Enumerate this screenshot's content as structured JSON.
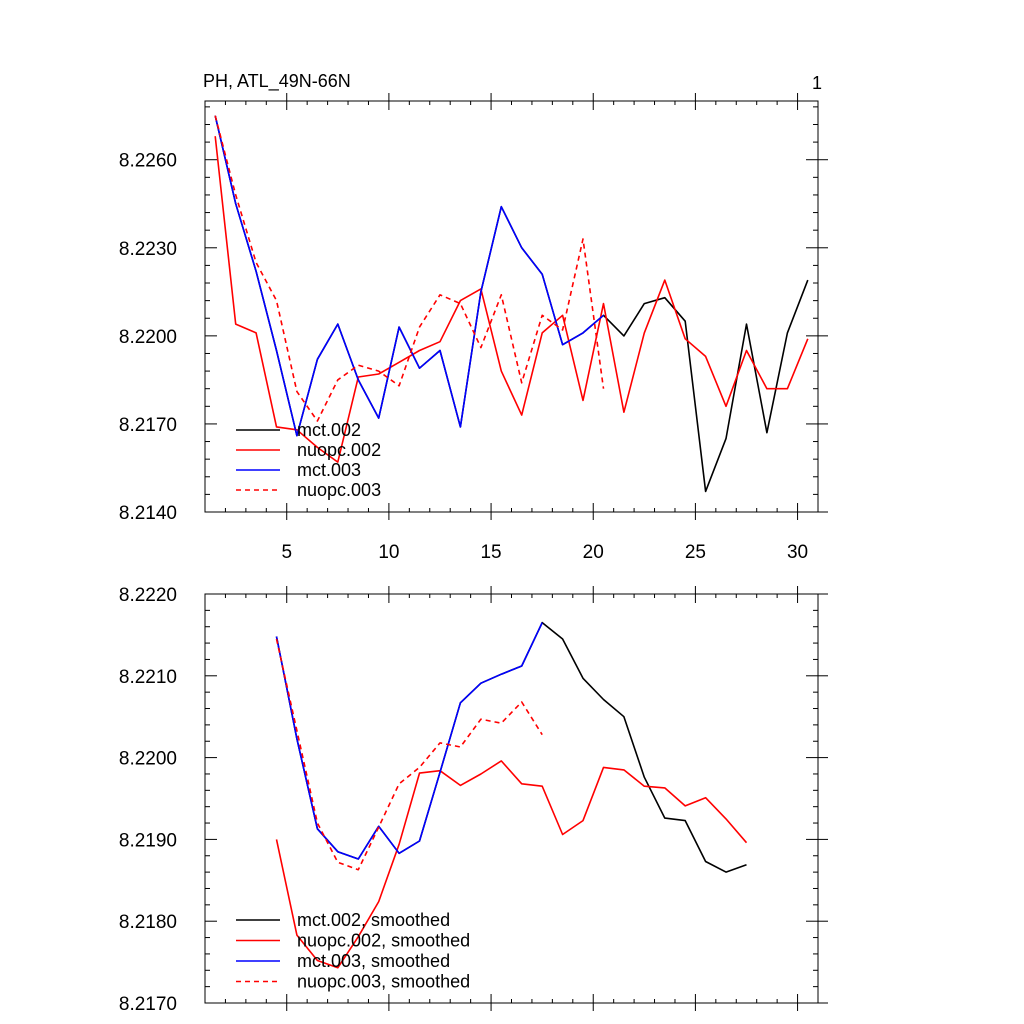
{
  "chart_data": [
    {
      "type": "line",
      "title": "PH, ATL_49N-66N",
      "panel_label": "1",
      "xlabel": "",
      "ylabel": "",
      "xlim": [
        1,
        31
      ],
      "ylim": [
        8.214,
        8.228
      ],
      "x_ticks": [
        5,
        10,
        15,
        20,
        25,
        30
      ],
      "x_tick_labels": [
        "5",
        "10",
        "15",
        "20",
        "25",
        "30"
      ],
      "y_ticks": [
        8.214,
        8.217,
        8.22,
        8.223,
        8.226
      ],
      "y_tick_labels": [
        "8.2140",
        "8.2170",
        "8.2200",
        "8.2230",
        "8.2260"
      ],
      "grid": false,
      "legend_position": "bottom-left",
      "series": [
        {
          "name": "mct.002",
          "color": "#000000",
          "dash": "solid",
          "x": [
            1.5,
            2.5,
            3.5,
            4.5,
            5.5,
            6.5,
            7.5,
            8.5,
            9.5,
            10.5,
            11.5,
            12.5,
            13.5,
            14.5,
            15.5,
            16.5,
            17.5,
            18.5,
            19.5,
            20.5,
            21.5,
            22.5,
            23.5,
            24.5,
            25.5,
            26.5,
            27.5,
            28.5,
            29.5,
            30.5
          ],
          "values": [
            8.2275,
            8.2245,
            8.2222,
            8.2195,
            8.2166,
            8.2192,
            8.2204,
            8.2185,
            8.2172,
            8.2203,
            8.2189,
            8.2195,
            8.2169,
            8.2215,
            8.2244,
            8.223,
            8.2221,
            8.2197,
            8.2201,
            8.2207,
            8.22,
            8.2211,
            8.2213,
            8.2205,
            8.2147,
            8.2165,
            8.2204,
            8.2167,
            8.2201,
            8.2219
          ]
        },
        {
          "name": "nuopc.002",
          "color": "#ff0000",
          "dash": "solid",
          "x": [
            1.5,
            2.5,
            3.5,
            4.5,
            5.5,
            6.5,
            7.5,
            8.5,
            9.5,
            10.5,
            11.5,
            12.5,
            13.5,
            14.5,
            15.5,
            16.5,
            17.5,
            18.5,
            19.5,
            20.5,
            21.5,
            22.5,
            23.5,
            24.5,
            25.5,
            26.5,
            27.5,
            28.5,
            29.5,
            30.5
          ],
          "values": [
            8.2268,
            8.2204,
            8.2201,
            8.2169,
            8.2168,
            8.2162,
            8.2157,
            8.2186,
            8.2187,
            8.2191,
            8.2195,
            8.2198,
            8.2212,
            8.2216,
            8.2188,
            8.2173,
            8.2201,
            8.2207,
            8.2178,
            8.2211,
            8.2174,
            8.2201,
            8.2219,
            8.2199,
            8.2193,
            8.2176,
            8.2195,
            8.2182,
            8.2182,
            8.2199
          ]
        },
        {
          "name": "mct.003",
          "color": "#0000ff",
          "dash": "solid",
          "x": [
            1.5,
            2.5,
            3.5,
            4.5,
            5.5,
            6.5,
            7.5,
            8.5,
            9.5,
            10.5,
            11.5,
            12.5,
            13.5,
            14.5,
            15.5,
            16.5,
            17.5,
            18.5,
            19.5,
            20.5
          ],
          "values": [
            8.2275,
            8.2245,
            8.2222,
            8.2195,
            8.2166,
            8.2192,
            8.2204,
            8.2185,
            8.2172,
            8.2203,
            8.2189,
            8.2195,
            8.2169,
            8.2215,
            8.2244,
            8.223,
            8.2221,
            8.2197,
            8.2201,
            8.2207
          ]
        },
        {
          "name": "nuopc.003",
          "color": "#ff0000",
          "dash": "dashed",
          "x": [
            1.5,
            2.5,
            3.5,
            4.5,
            5.5,
            6.5,
            7.5,
            8.5,
            9.5,
            10.5,
            11.5,
            12.5,
            13.5,
            14.5,
            15.5,
            16.5,
            17.5,
            18.5,
            19.5,
            20.5
          ],
          "values": [
            8.2275,
            8.2248,
            8.2225,
            8.2212,
            8.2181,
            8.2171,
            8.2185,
            8.219,
            8.2188,
            8.2183,
            8.2203,
            8.2214,
            8.2211,
            8.2196,
            8.2214,
            8.2184,
            8.2207,
            8.2202,
            8.2233,
            8.2182
          ]
        }
      ]
    },
    {
      "type": "line",
      "title": "",
      "xlabel": "",
      "ylabel": "",
      "xlim": [
        1,
        31
      ],
      "ylim": [
        8.217,
        8.222
      ],
      "x_ticks": [
        5,
        10,
        15,
        20,
        25,
        30
      ],
      "x_tick_labels": [],
      "y_ticks": [
        8.217,
        8.218,
        8.219,
        8.22,
        8.221,
        8.222
      ],
      "y_tick_labels": [
        "8.2170",
        "8.2180",
        "8.2190",
        "8.2200",
        "8.2210",
        "8.2220"
      ],
      "grid": false,
      "legend_position": "bottom-left",
      "series": [
        {
          "name": "mct.002, smoothed",
          "color": "#000000",
          "dash": "solid",
          "x": [
            4.5,
            5.5,
            6.5,
            7.5,
            8.5,
            9.5,
            10.5,
            11.5,
            12.5,
            13.5,
            14.5,
            15.5,
            16.5,
            17.5,
            18.5,
            19.5,
            20.5,
            21.5,
            22.5,
            23.5,
            24.5,
            25.5,
            26.5,
            27.5
          ],
          "values": [
            8.22148,
            8.22023,
            8.21913,
            8.21885,
            8.21876,
            8.21916,
            8.21883,
            8.21898,
            8.21982,
            8.22067,
            8.22091,
            8.22102,
            8.22112,
            8.22165,
            8.22145,
            8.22097,
            8.22071,
            8.2205,
            8.21976,
            8.21926,
            8.21923,
            8.21873,
            8.2186,
            8.21869
          ]
        },
        {
          "name": "nuopc.002, smoothed",
          "color": "#ff0000",
          "dash": "solid",
          "x": [
            4.5,
            5.5,
            6.5,
            7.5,
            8.5,
            9.5,
            10.5,
            11.5,
            12.5,
            13.5,
            14.5,
            15.5,
            16.5,
            17.5,
            18.5,
            19.5,
            20.5,
            21.5,
            22.5,
            23.5,
            24.5,
            25.5,
            26.5,
            27.5
          ],
          "values": [
            8.219,
            8.21783,
            8.21752,
            8.21743,
            8.21781,
            8.21824,
            8.21894,
            8.21981,
            8.21984,
            8.21966,
            8.2198,
            8.21996,
            8.21968,
            8.21965,
            8.21906,
            8.21923,
            8.21988,
            8.21985,
            8.21965,
            8.21963,
            8.21941,
            8.21951,
            8.21925,
            8.21896
          ]
        },
        {
          "name": "mct.003, smoothed",
          "color": "#0000ff",
          "dash": "solid",
          "x": [
            4.5,
            5.5,
            6.5,
            7.5,
            8.5,
            9.5,
            10.5,
            11.5,
            12.5,
            13.5,
            14.5,
            15.5,
            16.5,
            17.5
          ],
          "values": [
            8.22148,
            8.22023,
            8.21913,
            8.21885,
            8.21876,
            8.21916,
            8.21883,
            8.21898,
            8.21982,
            8.22067,
            8.22091,
            8.22102,
            8.22112,
            8.22165
          ]
        },
        {
          "name": "nuopc.003, smoothed",
          "color": "#ff0000",
          "dash": "dashed",
          "x": [
            4.5,
            5.5,
            6.5,
            7.5,
            8.5,
            9.5,
            10.5,
            11.5,
            12.5,
            13.5,
            14.5,
            15.5,
            16.5,
            17.5
          ],
          "values": [
            8.22145,
            8.22033,
            8.2192,
            8.21872,
            8.21863,
            8.21915,
            8.21968,
            8.21988,
            8.22018,
            8.22013,
            8.22047,
            8.22042,
            8.22068,
            8.22028
          ]
        }
      ]
    }
  ]
}
